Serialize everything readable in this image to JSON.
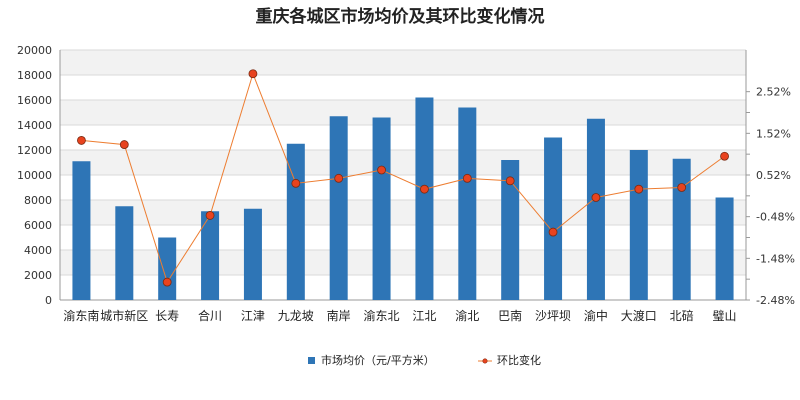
{
  "chart_data": {
    "type": "bar",
    "title": "重庆各城区市场均价及其环比变化情况",
    "categories": [
      "渝东南",
      "城市新区",
      "长寿",
      "合川",
      "江津",
      "九龙坡",
      "南岸",
      "渝东北",
      "江北",
      "渝北",
      "巴南",
      "沙坪坝",
      "渝中",
      "大渡口",
      "北碚",
      "璧山"
    ],
    "series": [
      {
        "name": "市场均价（元/平方米）",
        "type": "bar",
        "axis": "left",
        "color": "#2e75b6",
        "values": [
          11100,
          7500,
          5000,
          7100,
          7300,
          12500,
          14700,
          14600,
          16200,
          15400,
          11200,
          13000,
          14500,
          12000,
          11300,
          8200
        ]
      },
      {
        "name": "环比变化",
        "type": "line",
        "axis": "right",
        "color": "#ed7d31",
        "marker_fill": "#e8431e",
        "values": [
          1.35,
          1.25,
          -2.05,
          -0.45,
          2.95,
          0.32,
          0.44,
          0.64,
          0.18,
          0.44,
          0.38,
          -0.85,
          -0.02,
          0.18,
          0.22,
          0.97
        ]
      }
    ],
    "y_left": {
      "min": 0,
      "max": 20000,
      "step": 2000,
      "ticks": [
        "0",
        "2000",
        "4000",
        "6000",
        "8000",
        "10000",
        "12000",
        "14000",
        "16000",
        "18000",
        "20000"
      ]
    },
    "y_right": {
      "min": -2.48,
      "max": 3.52,
      "ticks": [
        "-2.48%",
        "-1.48%",
        "-0.48%",
        "0.52%",
        "1.52%",
        "2.52%"
      ]
    },
    "legend": {
      "position": "bottom",
      "items": [
        "市场均价（元/平方米）",
        "环比变化"
      ]
    },
    "grid": true
  }
}
